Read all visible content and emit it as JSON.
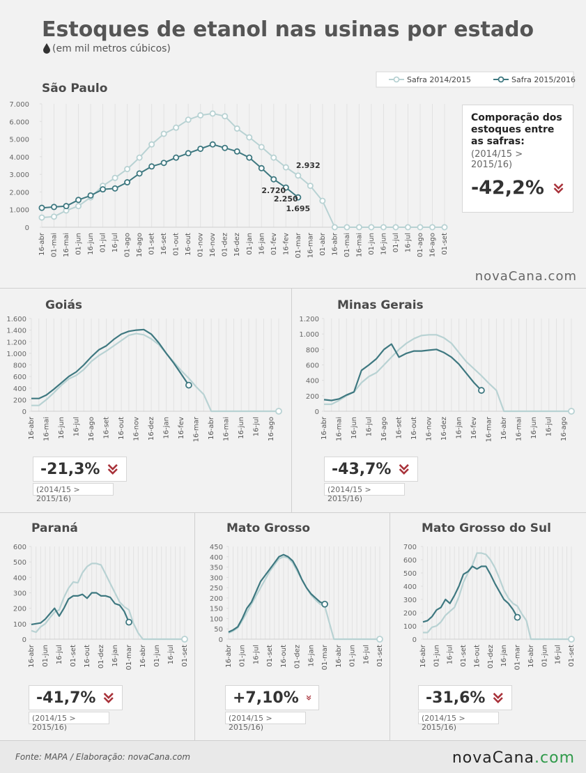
{
  "header": {
    "title": "Estoques de etanol nas usinas por estado",
    "subtitle": "(em mil metros cúbicos)"
  },
  "watermark": "novaCana.com",
  "footer": {
    "source": "Fonte: MAPA  / Elaboração: novaCana.com",
    "logo": [
      "nova",
      "Cana",
      ".com"
    ]
  },
  "chart_data": [
    {
      "type": "line",
      "title": "São Paulo",
      "categories": [
        "16-abr",
        "01-mai",
        "16-mai",
        "01-jun",
        "16-jun",
        "01-jul",
        "16-jul",
        "01-ago",
        "16-ago",
        "01-set",
        "16-set",
        "01-out",
        "16-out",
        "01-nov",
        "16-nov",
        "01-dez",
        "16-dez",
        "01-jan",
        "16-jan",
        "01-fev",
        "16-fev",
        "01-mar",
        "16-mar",
        "01-abr",
        "16-abr",
        "01-mai",
        "16-mai",
        "01-jun",
        "16-jun",
        "01-jul",
        "16-jul",
        "01-ago",
        "16-ago",
        "01-set"
      ],
      "series": [
        {
          "name": "Safra 2014/2015",
          "color": "#b8d2d3",
          "values": [
            550,
            600,
            950,
            1200,
            1700,
            2350,
            2800,
            3300,
            3950,
            4700,
            5300,
            5650,
            6100,
            6350,
            6450,
            6300,
            5600,
            5100,
            4550,
            3950,
            3400,
            2932,
            2350,
            1500,
            0,
            0,
            0,
            0,
            0,
            0,
            0,
            0,
            0,
            0
          ],
          "value_labels": [
            null,
            null,
            null,
            null,
            null,
            null,
            null,
            null,
            null,
            null,
            null,
            null,
            null,
            null,
            null,
            null,
            null,
            null,
            null,
            null,
            null,
            "2.932",
            null,
            null,
            null,
            null,
            null,
            null,
            null,
            null,
            null,
            null,
            null,
            null
          ]
        },
        {
          "name": "Safra 2015/2016",
          "color": "#3e7880",
          "values": [
            1100,
            1150,
            1200,
            1550,
            1800,
            2150,
            2200,
            2550,
            3050,
            3450,
            3650,
            3950,
            4200,
            4450,
            4700,
            4500,
            4300,
            3950,
            3350,
            2720,
            2250,
            1695,
            null,
            null,
            null,
            null,
            null,
            null,
            null,
            null,
            null,
            null,
            null,
            null
          ],
          "value_labels": [
            null,
            null,
            null,
            null,
            null,
            null,
            null,
            null,
            null,
            null,
            null,
            null,
            null,
            null,
            null,
            null,
            null,
            null,
            null,
            "2.720",
            "2.250",
            "1.695",
            null,
            null,
            null,
            null,
            null,
            null,
            null,
            null,
            null,
            null,
            null,
            null
          ]
        }
      ],
      "ylim": [
        0,
        7000
      ],
      "yticks": [
        0,
        {
          "value": 1000,
          "label": "1.000"
        },
        {
          "value": 2000,
          "label": "2.000"
        },
        {
          "value": 3000,
          "label": "3.000"
        },
        {
          "value": 4000,
          "label": "4.000"
        },
        {
          "value": 5000,
          "label": "5.000"
        },
        {
          "value": 6000,
          "label": "6.000"
        },
        {
          "value": 7000,
          "label": "7.000"
        }
      ],
      "grid": "x",
      "markers": "all",
      "legend": "top-right",
      "comparison": {
        "heading": "Comporação dos estoques entre as safras:",
        "note": "(2014/15 > 2015/16)",
        "change": "-42,2%"
      }
    },
    {
      "type": "line",
      "title": "Goiás",
      "categories": [
        "16-abr",
        null,
        "16-mai",
        null,
        "16-jun",
        null,
        "16-jul",
        null,
        "16-ago",
        null,
        "16-set",
        null,
        "16-out",
        null,
        "16-nov",
        null,
        "16-dez",
        null,
        "16-jan",
        null,
        "16-fev",
        null,
        "16-mar",
        null,
        "16-abr",
        null,
        "16-mai",
        null,
        "16-jun",
        null,
        "16-jul",
        null,
        "16-ago",
        null
      ],
      "series": [
        {
          "color": "#b8d2d3",
          "values": [
            100,
            100,
            200,
            320,
            450,
            560,
            620,
            720,
            860,
            960,
            1040,
            1130,
            1220,
            1310,
            1340,
            1320,
            1250,
            1150,
            1000,
            850,
            700,
            570,
            420,
            290,
            0,
            0,
            0,
            0,
            0,
            0,
            0,
            0,
            0,
            0
          ]
        },
        {
          "color": "#3e7880",
          "values": [
            220,
            220,
            280,
            380,
            490,
            600,
            680,
            800,
            940,
            1060,
            1130,
            1240,
            1330,
            1380,
            1400,
            1410,
            1330,
            1180,
            1000,
            830,
            640,
            450,
            null,
            null,
            null,
            null,
            null,
            null,
            null,
            null,
            null,
            null,
            null,
            null
          ]
        }
      ],
      "ylim": [
        0,
        1600
      ],
      "yticks": [
        0,
        200,
        400,
        600,
        800,
        {
          "value": 1000,
          "label": "1.000"
        },
        {
          "value": 1200,
          "label": "1.200"
        },
        {
          "value": 1400,
          "label": "1.400"
        },
        {
          "value": 1600,
          "label": "1.600"
        }
      ],
      "grid": "x",
      "markers": "last",
      "comparison": {
        "note": "(2014/15 > 2015/16)",
        "change": "-21,3%"
      }
    },
    {
      "type": "line",
      "title": "Minas Gerais",
      "categories": [
        "16-abr",
        null,
        "16-mai",
        null,
        "16-jun",
        null,
        "16-jul",
        null,
        "16-ago",
        null,
        "16-set",
        null,
        "16-out",
        null,
        "16-nov",
        null,
        "16-dez",
        null,
        "16-jan",
        null,
        "16-fev",
        null,
        "16-mar",
        null,
        "16-abr",
        null,
        "16-mai",
        null,
        "16-jun",
        null,
        "16-jul",
        null,
        "16-ago",
        null
      ],
      "series": [
        {
          "color": "#b8d2d3",
          "values": [
            90,
            90,
            140,
            200,
            250,
            370,
            450,
            500,
            600,
            700,
            800,
            880,
            940,
            980,
            990,
            990,
            950,
            880,
            760,
            640,
            550,
            460,
            360,
            270,
            0,
            0,
            0,
            0,
            0,
            0,
            0,
            0,
            0,
            0
          ]
        },
        {
          "color": "#3e7880",
          "values": [
            150,
            140,
            160,
            210,
            250,
            530,
            600,
            680,
            800,
            870,
            700,
            750,
            780,
            780,
            790,
            800,
            760,
            700,
            610,
            490,
            370,
            270,
            null,
            null,
            null,
            null,
            null,
            null,
            null,
            null,
            null,
            null,
            null,
            null
          ]
        }
      ],
      "ylim": [
        0,
        1200
      ],
      "yticks": [
        0,
        200,
        400,
        600,
        800,
        {
          "value": 1000,
          "label": "1.000"
        },
        {
          "value": 1200,
          "label": "1.200"
        }
      ],
      "grid": "x",
      "markers": "last",
      "comparison": {
        "note": "(2014/15 > 2015/16)",
        "change": "-43,7%"
      }
    },
    {
      "type": "line",
      "title": "Paraná",
      "categories": [
        "16-abr",
        null,
        null,
        "01-jun",
        null,
        null,
        "16-jul",
        null,
        null,
        "01-set",
        null,
        null,
        "16-out",
        null,
        null,
        "01-dez",
        null,
        null,
        "16-jan",
        null,
        null,
        "01-mar",
        null,
        null,
        "16-abr",
        null,
        null,
        "01-jun",
        null,
        null,
        "16-jul",
        null,
        null,
        "01-set"
      ],
      "series": [
        {
          "color": "#b8d2d3",
          "values": [
            55,
            45,
            80,
            100,
            140,
            175,
            190,
            270,
            330,
            370,
            365,
            430,
            470,
            490,
            490,
            480,
            420,
            360,
            300,
            240,
            210,
            190,
            100,
            40,
            0,
            0,
            0,
            0,
            0,
            0,
            0,
            0,
            0,
            0
          ]
        },
        {
          "color": "#3e7880",
          "values": [
            95,
            100,
            105,
            130,
            165,
            200,
            150,
            200,
            260,
            280,
            280,
            290,
            265,
            300,
            300,
            280,
            280,
            270,
            230,
            220,
            180,
            110,
            null,
            null,
            null,
            null,
            null,
            null,
            null,
            null,
            null,
            null,
            null,
            null
          ]
        }
      ],
      "ylim": [
        0,
        600
      ],
      "yticks": [
        0,
        100,
        200,
        300,
        400,
        500,
        600
      ],
      "grid": "x",
      "markers": "last",
      "comparison": {
        "note": "(2014/15 > 2015/16)",
        "change": "-41,7%"
      }
    },
    {
      "type": "line",
      "title": "Mato Grosso",
      "categories": [
        "16-abr",
        null,
        null,
        "01-jun",
        null,
        null,
        "16-jul",
        null,
        null,
        "01-set",
        null,
        null,
        "16-out",
        null,
        null,
        "01-dez",
        null,
        null,
        "16-jan",
        null,
        null,
        "01-mar",
        null,
        null,
        "16-abr",
        null,
        null,
        "01-jun",
        null,
        null,
        "16-jul",
        null,
        null,
        "01-set"
      ],
      "series": [
        {
          "color": "#b8d2d3",
          "values": [
            30,
            40,
            55,
            90,
            130,
            170,
            210,
            250,
            290,
            330,
            360,
            390,
            400,
            395,
            370,
            330,
            290,
            250,
            215,
            190,
            170,
            160,
            80,
            0,
            0,
            0,
            0,
            0,
            0,
            0,
            0,
            0,
            0,
            0
          ]
        },
        {
          "color": "#3e7880",
          "values": [
            35,
            45,
            60,
            100,
            150,
            180,
            230,
            280,
            310,
            340,
            370,
            400,
            410,
            400,
            380,
            340,
            290,
            250,
            220,
            200,
            180,
            170,
            null,
            null,
            null,
            null,
            null,
            null,
            null,
            null,
            null,
            null,
            null,
            null
          ]
        }
      ],
      "ylim": [
        0,
        450
      ],
      "yticks": [
        0,
        50,
        100,
        150,
        200,
        250,
        300,
        350,
        400,
        450
      ],
      "grid": "x",
      "markers": "last",
      "comparison": {
        "note": "(2014/15 > 2015/16)",
        "change": "+7,10%"
      }
    },
    {
      "type": "line",
      "title": "Mato Grosso do Sul",
      "categories": [
        "16-abr",
        null,
        null,
        "01-jun",
        null,
        null,
        "16-jul",
        null,
        null,
        "01-set",
        null,
        null,
        "16-out",
        null,
        null,
        "01-dez",
        null,
        null,
        "16-jan",
        null,
        null,
        "01-mar",
        null,
        null,
        "16-abr",
        null,
        null,
        "01-jun",
        null,
        null,
        "16-jul",
        null,
        null,
        "01-set"
      ],
      "series": [
        {
          "color": "#b8d2d3",
          "values": [
            50,
            50,
            90,
            100,
            130,
            180,
            210,
            240,
            320,
            430,
            500,
            560,
            650,
            650,
            640,
            600,
            540,
            460,
            370,
            310,
            270,
            250,
            190,
            140,
            0,
            0,
            0,
            0,
            0,
            0,
            0,
            0,
            0,
            0
          ]
        },
        {
          "color": "#3e7880",
          "values": [
            130,
            140,
            170,
            220,
            240,
            300,
            270,
            330,
            400,
            490,
            510,
            550,
            530,
            550,
            550,
            490,
            420,
            360,
            300,
            270,
            225,
            165,
            null,
            null,
            null,
            null,
            null,
            null,
            null,
            null,
            null,
            null,
            null,
            null
          ]
        }
      ],
      "ylim": [
        0,
        700
      ],
      "yticks": [
        0,
        100,
        200,
        300,
        400,
        500,
        600,
        700
      ],
      "grid": "x",
      "markers": "last",
      "comparison": {
        "note": "(2014/15 > 2015/16)",
        "change": "-31,6%"
      }
    }
  ]
}
